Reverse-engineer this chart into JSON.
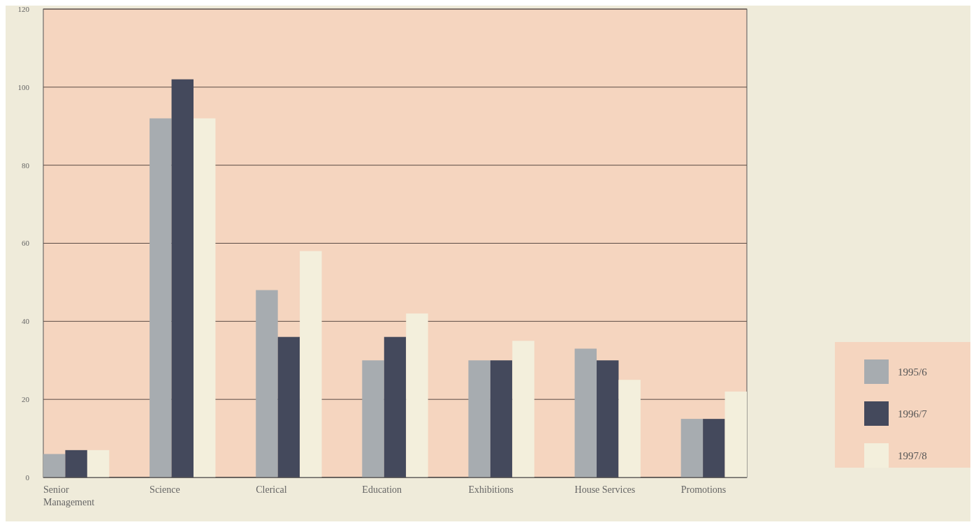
{
  "chart_data": {
    "type": "bar",
    "categories": [
      "Senior Management",
      "Science",
      "Clerical",
      "Education",
      "Exhibitions",
      "House Services",
      "Promotions"
    ],
    "series": [
      {
        "name": "1995/6",
        "color": "#a7acb0",
        "values": [
          6,
          92,
          48,
          30,
          30,
          33,
          15
        ]
      },
      {
        "name": "1996/7",
        "color": "#44495c",
        "values": [
          7,
          102,
          36,
          36,
          30,
          30,
          15
        ]
      },
      {
        "name": "1997/8",
        "color": "#f3efdc",
        "values": [
          7,
          92,
          58,
          42,
          35,
          25,
          22
        ]
      }
    ],
    "ylim": [
      0,
      120
    ],
    "yticks": [
      0,
      20,
      40,
      60,
      80,
      100,
      120
    ],
    "grid": "y",
    "legend": "right"
  }
}
